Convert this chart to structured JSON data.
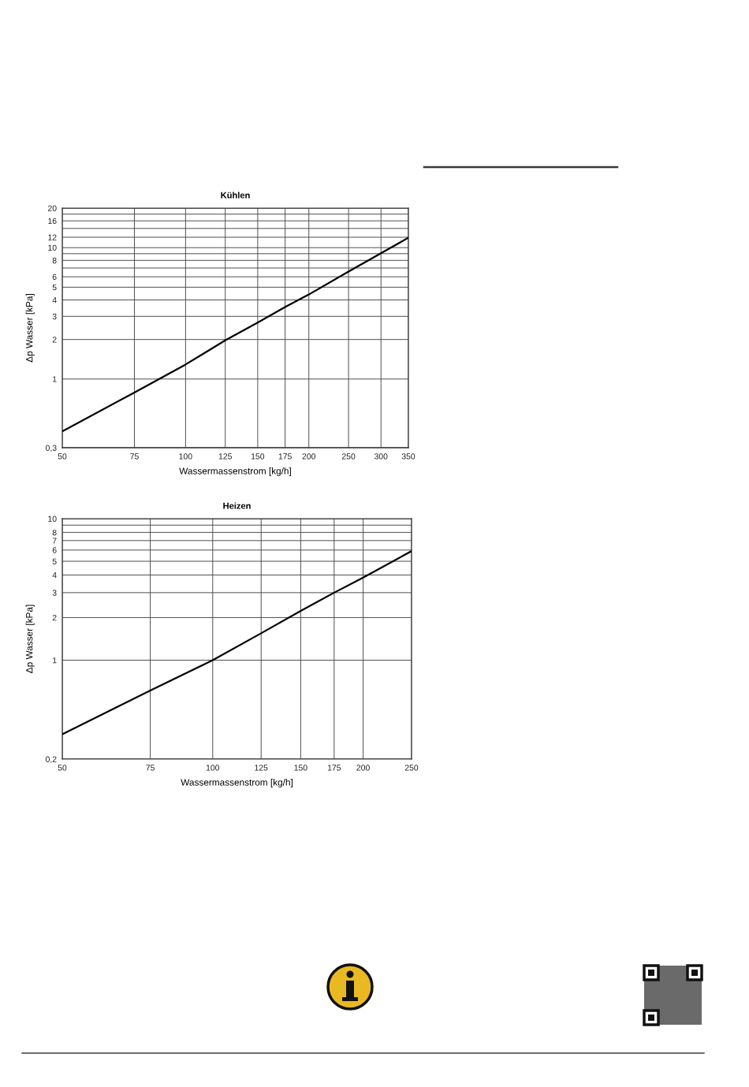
{
  "chart_data": [
    {
      "type": "line",
      "title": "Kühlen",
      "xlabel": "Wassermassenstrom [kg/h]",
      "ylabel": "Δp Wasser [kPa]",
      "x": [
        50,
        75,
        100,
        125,
        150,
        175,
        200,
        250,
        300,
        350
      ],
      "series": [
        {
          "color": "#000000",
          "values": [
            0.4,
            0.79,
            1.29,
            1.97,
            2.69,
            3.53,
            4.4,
            6.58,
            9.07,
            11.9
          ]
        }
      ],
      "xlim": [
        50,
        350
      ],
      "ylim": [
        0.3,
        20
      ],
      "xticks": [
        50,
        75,
        100,
        125,
        150,
        175,
        200,
        250,
        300,
        350
      ],
      "yticks": [
        {
          "value": 0.3,
          "label": "0,3"
        },
        1,
        2,
        3,
        4,
        5,
        6,
        {
          "value": 7,
          "label": null
        },
        8,
        {
          "value": 9,
          "label": null
        },
        10,
        12,
        {
          "value": 14,
          "label": null
        },
        16,
        {
          "value": 18,
          "label": null
        },
        20
      ],
      "log": "xy",
      "grid": true
    },
    {
      "type": "line",
      "title": "Heizen",
      "xlabel": "Wassermassenstrom [kg/h]",
      "ylabel": "Δp Wasser [kPa]",
      "x": [
        50,
        75,
        100,
        125,
        150,
        175,
        200,
        250
      ],
      "series": [
        {
          "color": "#000000",
          "values": [
            0.3,
            0.61,
            1.0,
            1.55,
            2.23,
            3.0,
            3.83,
            5.9
          ]
        }
      ],
      "xlim": [
        50,
        250
      ],
      "ylim": [
        0.2,
        10
      ],
      "xticks": [
        50,
        75,
        100,
        125,
        150,
        175,
        200,
        250
      ],
      "yticks": [
        {
          "value": 0.2,
          "label": "0,2"
        },
        1,
        2,
        3,
        4,
        5,
        6,
        7,
        8,
        {
          "value": 9,
          "label": null
        },
        10
      ],
      "log": "xy",
      "grid": true
    }
  ]
}
